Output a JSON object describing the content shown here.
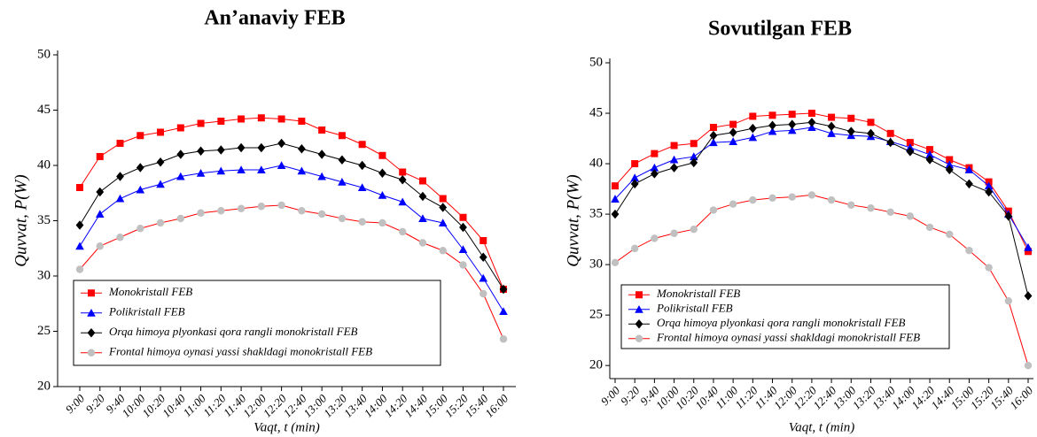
{
  "chart_data": [
    {
      "type": "line",
      "title": "An’anaviy FEB",
      "x_label": "Vaqt, t (min)",
      "y_label": "Quvvat, P(W)",
      "categories": [
        "9:00",
        "9:20",
        "9:40",
        "10:00",
        "10:20",
        "10:40",
        "11:00",
        "11:20",
        "11:40",
        "12:00",
        "12:20",
        "12:40",
        "13:00",
        "13:20",
        "13:40",
        "14:00",
        "14:20",
        "14:40",
        "15:00",
        "15:20",
        "15:40",
        "16:00"
      ],
      "ylim": [
        20,
        50
      ],
      "yticks": [
        20,
        25,
        30,
        35,
        40,
        45,
        50
      ],
      "legend": "bottom-left",
      "series": [
        {
          "name": "Monokristall FEB",
          "color": "#ff0000",
          "marker": "square",
          "marker_color": "#ff0000",
          "values": [
            38.0,
            40.8,
            42.0,
            42.7,
            43.0,
            43.4,
            43.8,
            44.0,
            44.2,
            44.3,
            44.2,
            44.0,
            43.2,
            42.7,
            41.9,
            40.9,
            39.4,
            38.6,
            37.0,
            35.3,
            33.2,
            28.8
          ]
        },
        {
          "name": "Polikristall FEB",
          "color": "#0000ff",
          "marker": "triangle",
          "marker_color": "#0000ff",
          "values": [
            32.7,
            35.6,
            37.0,
            37.8,
            38.3,
            39.0,
            39.3,
            39.5,
            39.6,
            39.6,
            40.0,
            39.5,
            39.0,
            38.5,
            38.0,
            37.3,
            36.7,
            35.2,
            34.8,
            32.4,
            29.8,
            26.8
          ]
        },
        {
          "name": "Orqa himoya plyonkasi qora rangli monokristall FEB",
          "color": "#000000",
          "marker": "diamond",
          "marker_color": "#000000",
          "values": [
            34.6,
            37.6,
            39.0,
            39.8,
            40.3,
            41.0,
            41.3,
            41.4,
            41.6,
            41.6,
            42.0,
            41.5,
            41.0,
            40.5,
            40.0,
            39.3,
            38.7,
            37.2,
            36.2,
            34.4,
            31.7,
            28.8
          ]
        },
        {
          "name": "Frontal himoya oynasi yassi shakldagi monokristall FEB",
          "color": "#ff0000",
          "marker": "circle",
          "marker_color": "#c0c0c0",
          "values": [
            30.6,
            32.7,
            33.5,
            34.3,
            34.8,
            35.2,
            35.7,
            35.9,
            36.1,
            36.3,
            36.4,
            35.9,
            35.6,
            35.2,
            34.9,
            34.8,
            34.0,
            33.0,
            32.3,
            31.0,
            28.4,
            24.3
          ]
        }
      ]
    },
    {
      "type": "line",
      "title": "Sovutilgan FEB",
      "x_label": "Vaqt, t (min)",
      "y_label": "Quvvat, P(W)",
      "categories": [
        "9:00",
        "9:20",
        "9:40",
        "10:00",
        "10:20",
        "10:40",
        "11:00",
        "11:20",
        "11:40",
        "12:00",
        "12:20",
        "12:40",
        "13:00",
        "13:20",
        "13:40",
        "14:00",
        "14:20",
        "14:40",
        "15:00",
        "15:20",
        "15:40",
        "16:00"
      ],
      "ylim": [
        18.7,
        50
      ],
      "yticks": [
        20,
        25,
        30,
        35,
        40,
        45,
        50
      ],
      "legend": "bottom-left",
      "series": [
        {
          "name": "Monokristall FEB",
          "color": "#ff0000",
          "marker": "square",
          "marker_color": "#ff0000",
          "values": [
            37.8,
            40.0,
            41.0,
            41.8,
            42.0,
            43.6,
            43.9,
            44.7,
            44.8,
            44.9,
            45.0,
            44.6,
            44.5,
            44.1,
            43.0,
            42.1,
            41.4,
            40.4,
            39.6,
            38.2,
            35.3,
            31.3
          ]
        },
        {
          "name": "Polikristall FEB",
          "color": "#0000ff",
          "marker": "triangle",
          "marker_color": "#0000ff",
          "values": [
            36.5,
            38.6,
            39.6,
            40.4,
            40.7,
            42.1,
            42.2,
            42.6,
            43.2,
            43.3,
            43.6,
            43.0,
            42.8,
            42.7,
            42.2,
            41.6,
            40.9,
            39.9,
            39.4,
            37.8,
            35.0,
            31.7
          ]
        },
        {
          "name": "Orqa himoya plyonkasi qora rangli monokristall FEB",
          "color": "#000000",
          "marker": "diamond",
          "marker_color": "#000000",
          "values": [
            35.0,
            38.0,
            39.0,
            39.6,
            40.1,
            42.8,
            43.1,
            43.5,
            43.8,
            43.9,
            44.1,
            43.7,
            43.2,
            43.0,
            42.1,
            41.2,
            40.4,
            39.4,
            38.0,
            37.2,
            34.8,
            26.9
          ]
        },
        {
          "name": "Frontal himoya oynasi yassi shakldagi monokristall FEB",
          "color": "#ff0000",
          "marker": "circle",
          "marker_color": "#c0c0c0",
          "values": [
            30.2,
            31.6,
            32.6,
            33.1,
            33.5,
            35.4,
            36.0,
            36.4,
            36.6,
            36.7,
            36.9,
            36.4,
            35.9,
            35.6,
            35.2,
            34.8,
            33.7,
            33.0,
            31.4,
            29.7,
            26.4,
            20.0
          ]
        }
      ]
    }
  ]
}
